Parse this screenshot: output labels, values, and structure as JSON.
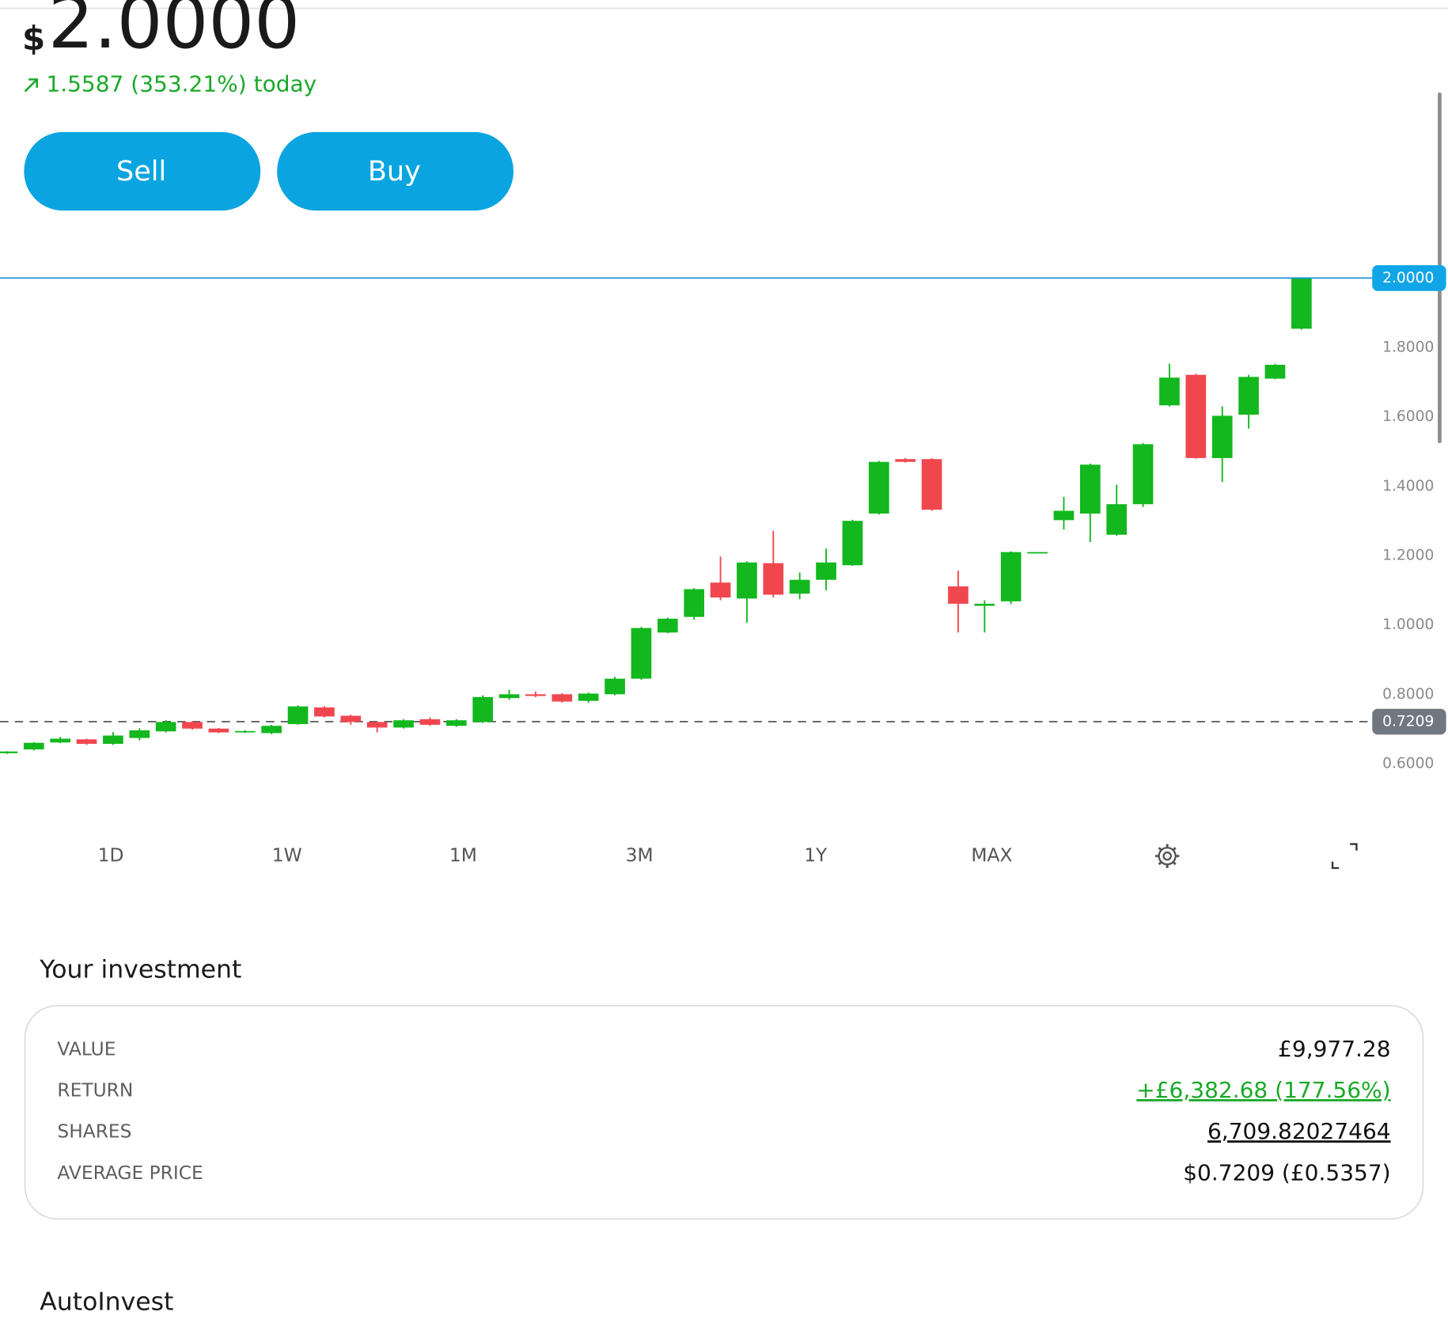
{
  "header": {
    "currency": "$",
    "price": "2.0000",
    "change": "1.5587 (353.21%) today"
  },
  "actions": {
    "sell": "Sell",
    "buy": "Buy"
  },
  "chart_data": {
    "type": "candlestick",
    "up_color": "#12b81e",
    "down_color": "#f0474f",
    "open": [
      0.63,
      0.641,
      0.661,
      0.67,
      0.657,
      0.674,
      0.693,
      0.72,
      0.701,
      0.691,
      0.688,
      0.714,
      0.762,
      0.738,
      0.72,
      0.704,
      0.728,
      0.709,
      0.72,
      0.789,
      0.8,
      0.8,
      0.781,
      0.8,
      0.845,
      0.978,
      1.023,
      1.122,
      1.076,
      1.178,
      1.09,
      1.13,
      1.172,
      1.321,
      1.478,
      1.478,
      1.111,
      1.055,
      1.068,
      1.21,
      1.302,
      1.321,
      1.26,
      1.348,
      1.633,
      1.721,
      1.481,
      1.606,
      1.71,
      1.854
    ],
    "high": [
      0.636,
      0.662,
      0.677,
      0.672,
      0.691,
      0.702,
      0.725,
      0.722,
      0.703,
      0.696,
      0.712,
      0.768,
      0.766,
      0.741,
      0.722,
      0.728,
      0.733,
      0.728,
      0.797,
      0.813,
      0.808,
      0.803,
      0.805,
      0.85,
      0.994,
      1.021,
      1.106,
      1.197,
      1.183,
      1.271,
      1.151,
      1.22,
      1.303,
      1.473,
      1.481,
      1.481,
      1.156,
      1.071,
      1.212,
      1.21,
      1.369,
      1.465,
      1.404,
      1.524,
      1.753,
      1.724,
      1.63,
      1.721,
      1.753,
      2.0
    ],
    "low": [
      0.628,
      0.638,
      0.659,
      0.654,
      0.654,
      0.667,
      0.69,
      0.698,
      0.688,
      0.688,
      0.685,
      0.712,
      0.733,
      0.712,
      0.69,
      0.701,
      0.709,
      0.706,
      0.717,
      0.784,
      0.792,
      0.776,
      0.776,
      0.797,
      0.842,
      0.976,
      1.015,
      1.071,
      1.006,
      1.079,
      1.074,
      1.1,
      1.17,
      1.318,
      1.468,
      1.329,
      0.978,
      0.978,
      1.06,
      1.21,
      1.275,
      1.239,
      1.257,
      1.34,
      1.63,
      1.479,
      1.412,
      1.566,
      1.708,
      1.851
    ],
    "close": [
      0.635,
      0.66,
      0.672,
      0.657,
      0.681,
      0.696,
      0.72,
      0.701,
      0.69,
      0.694,
      0.709,
      0.765,
      0.736,
      0.72,
      0.704,
      0.725,
      0.712,
      0.725,
      0.792,
      0.8,
      0.795,
      0.779,
      0.802,
      0.845,
      0.991,
      1.018,
      1.103,
      1.079,
      1.18,
      1.087,
      1.13,
      1.18,
      1.3,
      1.47,
      1.47,
      1.332,
      1.061,
      1.061,
      1.21,
      1.21,
      1.329,
      1.462,
      1.348,
      1.521,
      1.713,
      1.481,
      1.603,
      1.715,
      1.75,
      2.0
    ],
    "ylim": [
      0.48,
      2.2
    ],
    "yticks": [
      {
        "value": 0.6,
        "label": "0.6000"
      },
      {
        "value": 0.8,
        "label": "0.8000"
      },
      {
        "value": 1.0,
        "label": "1.0000"
      },
      {
        "value": 1.2,
        "label": "1.2000"
      },
      {
        "value": 1.4,
        "label": "1.4000"
      },
      {
        "value": 1.6,
        "label": "1.6000"
      },
      {
        "value": 1.8,
        "label": "1.8000"
      }
    ],
    "price_line": {
      "value": 2.0,
      "label": "2.0000",
      "color": "#1a8fd6"
    },
    "average_line": {
      "value": 0.7209,
      "label": "0.7209",
      "color": "#707780"
    }
  },
  "timeframes": [
    "1D",
    "1W",
    "1M",
    "3M",
    "1Y",
    "MAX"
  ],
  "investment": {
    "title": "Your investment",
    "rows": [
      {
        "label": "VALUE",
        "value": "£9,977.28"
      },
      {
        "label": "RETURN",
        "value": "+£6,382.68 (177.56%)"
      },
      {
        "label": "SHARES",
        "value": "6,709.82027464"
      },
      {
        "label": "AVERAGE PRICE",
        "value": "$0.7209 (£0.5357)"
      }
    ]
  },
  "autoinvest": {
    "title": "AutoInvest"
  }
}
